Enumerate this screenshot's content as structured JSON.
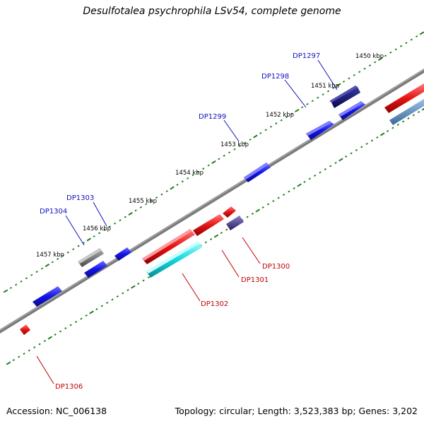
{
  "title": "Desulfotalea psychrophila LSv54, complete genome",
  "footer": {
    "accession": "Accession: NC_006138",
    "summary": "Topology: circular; Length: 3,523,383 bp; Genes: 3,202"
  },
  "scale_ticks": [
    "1450 kbp",
    "1451 kbp",
    "1452 kbp",
    "1453 kbp",
    "1454 kbp",
    "1455 kbp",
    "1456 kbp",
    "1457 kbp"
  ],
  "genes": [
    {
      "id": "DP1297",
      "strand": "forward",
      "color": "#0a0a7a"
    },
    {
      "id": "DP1298",
      "strand": "forward",
      "color": "#1414e6"
    },
    {
      "id": "DP1299",
      "strand": "forward",
      "color": "#1414e6"
    },
    {
      "id": "DP1303",
      "strand": "forward",
      "color": "#1414e6"
    },
    {
      "id": "DP1304",
      "strand": "forward",
      "color": "#6a6a6a"
    },
    {
      "id": "DP1300",
      "strand": "reverse",
      "color": "#4a3f8a"
    },
    {
      "id": "DP1301",
      "strand": "reverse",
      "color": "#e61414"
    },
    {
      "id": "DP1302",
      "strand": "reverse",
      "color": "#14d6e0"
    },
    {
      "id": "DP1306",
      "strand": "reverse",
      "color": "#e61414"
    }
  ],
  "colors": {
    "forward_label": "#1010c0",
    "reverse_label": "#c00000",
    "tick": "#1a7a1a",
    "backbone": "#7a7a7a"
  }
}
